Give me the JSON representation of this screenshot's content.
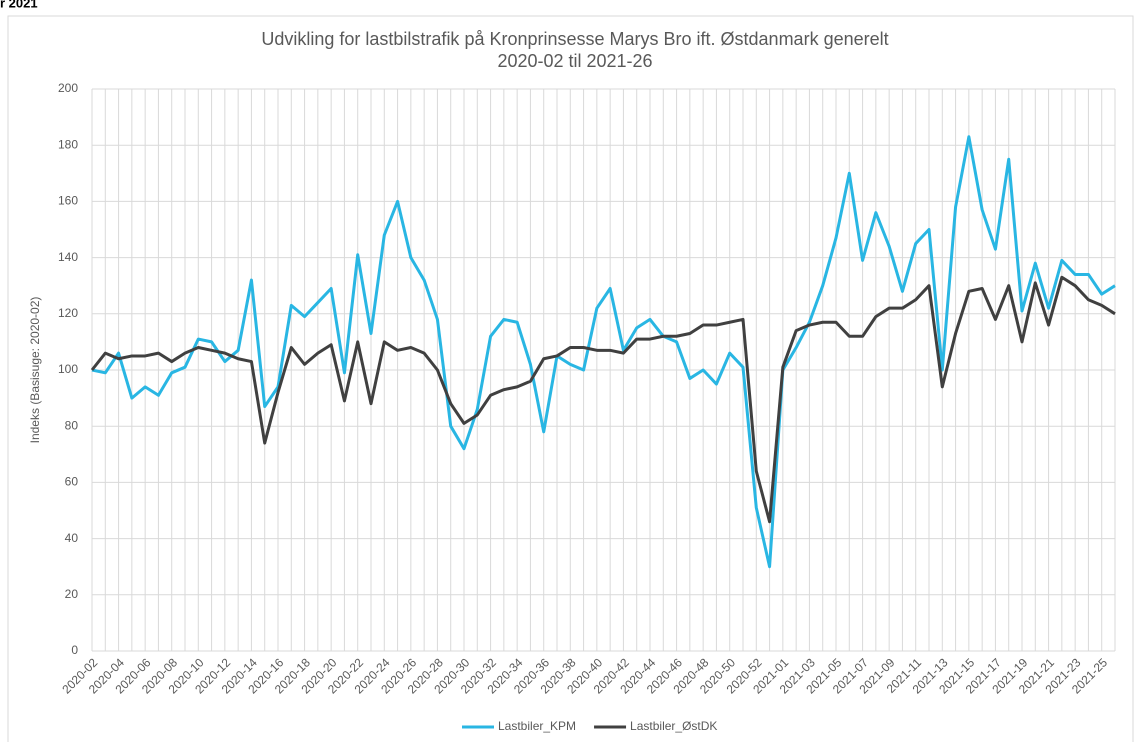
{
  "header": "r 2021",
  "chart_data": {
    "type": "line",
    "title": "Udvikling for lastbilstrafik på Kronprinsesse Marys Bro ift. Østdanmark generelt",
    "subtitle": "2020-02 til 2021-26",
    "y_label": "Indeks (Basisuge: 2020-02)",
    "categories": [
      "2020-02",
      null,
      "2020-04",
      null,
      "2020-06",
      null,
      "2020-08",
      null,
      "2020-10",
      null,
      "2020-12",
      null,
      "2020-14",
      null,
      "2020-16",
      null,
      "2020-18",
      null,
      "2020-20",
      null,
      "2020-22",
      null,
      "2020-24",
      null,
      "2020-26",
      null,
      "2020-28",
      null,
      "2020-30",
      null,
      "2020-32",
      null,
      "2020-34",
      null,
      "2020-36",
      null,
      "2020-38",
      null,
      "2020-40",
      null,
      "2020-42",
      null,
      "2020-44",
      null,
      "2020-46",
      null,
      "2020-48",
      null,
      "2020-50",
      null,
      "2020-52",
      null,
      "2021-01",
      null,
      "2021-03",
      null,
      "2021-05",
      null,
      "2021-07",
      null,
      "2021-09",
      null,
      "2021-11",
      null,
      "2021-13",
      null,
      "2021-15",
      null,
      "2021-17",
      null,
      "2021-19",
      null,
      "2021-21",
      null,
      "2021-23",
      null,
      "2021-25",
      null
    ],
    "series": [
      {
        "name": "Lastbiler_KPM",
        "color": "#29b6e3",
        "values": [
          100,
          99,
          106,
          90,
          94,
          91,
          99,
          101,
          111,
          110,
          103,
          107,
          132,
          87,
          94,
          123,
          119,
          124,
          129,
          99,
          141,
          113,
          148,
          160,
          140,
          132,
          118,
          80,
          72,
          86,
          112,
          118,
          117,
          102,
          78,
          105,
          102,
          100,
          122,
          129,
          107,
          115,
          118,
          112,
          110,
          97,
          100,
          95,
          106,
          101,
          51,
          30,
          100,
          108,
          117,
          130,
          147,
          170,
          139,
          156,
          144,
          128,
          145,
          150,
          100,
          158,
          183,
          157,
          143,
          175,
          121,
          138,
          122,
          139,
          134,
          134,
          127,
          130
        ]
      },
      {
        "name": "Lastbiler_ØstDK",
        "color": "#404040",
        "values": [
          100,
          106,
          104,
          105,
          105,
          106,
          103,
          106,
          108,
          107,
          106,
          104,
          103,
          74,
          92,
          108,
          102,
          106,
          109,
          89,
          110,
          88,
          110,
          107,
          108,
          106,
          100,
          88,
          81,
          84,
          91,
          93,
          94,
          96,
          104,
          105,
          108,
          108,
          107,
          107,
          106,
          111,
          111,
          112,
          112,
          113,
          116,
          116,
          117,
          118,
          64,
          46,
          101,
          114,
          116,
          117,
          117,
          112,
          112,
          119,
          122,
          122,
          125,
          130,
          94,
          113,
          128,
          129,
          118,
          130,
          110,
          131,
          116,
          133,
          130,
          125,
          123,
          120
        ]
      }
    ],
    "ylim": [
      0,
      200
    ],
    "yticks": [
      0,
      20,
      40,
      60,
      80,
      100,
      120,
      140,
      160,
      180,
      200
    ],
    "grid": true,
    "legend": "bottom"
  }
}
